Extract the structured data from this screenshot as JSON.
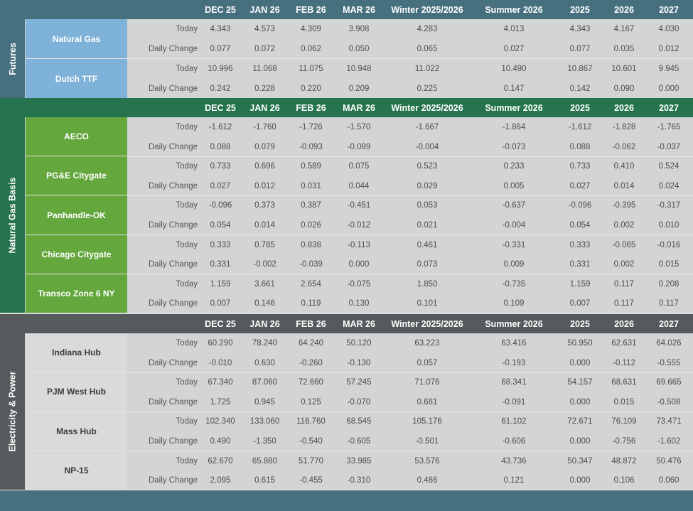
{
  "colors": {
    "futures_header": "#47707f",
    "futures_label": "#7fb2d9",
    "basis_header": "#26744d",
    "basis_label": "#64a73d",
    "power_header": "#565a5c",
    "power_label": "#d8dadc",
    "positive": "#0e5a2c",
    "negative": "#b00018",
    "body": "#d2d4d5"
  },
  "columns": [
    "DEC 25",
    "JAN 26",
    "FEB 26",
    "MAR 26",
    "Winter 2025/2026",
    "Summer 2026",
    "2025",
    "2026",
    "2027"
  ],
  "sections": [
    {
      "title": "Futures",
      "items": [
        {
          "name": "Natural Gas",
          "today_label": "Today",
          "today": [
            "4.343",
            "4.573",
            "4.309",
            "3.908",
            "4.283",
            "4.013",
            "4.343",
            "4.167",
            "4.030"
          ],
          "change_label": "Daily Change",
          "change": [
            "0.077",
            "0.072",
            "0.062",
            "0.050",
            "0.065",
            "0.027",
            "0.077",
            "0.035",
            "0.012"
          ]
        },
        {
          "name": "Dutch TTF",
          "today_label": "Today",
          "today": [
            "10.996",
            "11.068",
            "11.075",
            "10.948",
            "11.022",
            "10.490",
            "10.867",
            "10.601",
            "9.945"
          ],
          "change_label": "Daily Change",
          "change": [
            "0.242",
            "0.228",
            "0.220",
            "0.209",
            "0.225",
            "0.147",
            "0.142",
            "0.090",
            "0.000"
          ]
        }
      ]
    },
    {
      "title": "Natural Gas Basis",
      "items": [
        {
          "name": "AECO",
          "today_label": "Today",
          "today": [
            "-1.612",
            "-1.760",
            "-1.726",
            "-1.570",
            "-1.667",
            "-1.864",
            "-1.612",
            "-1.828",
            "-1.765"
          ],
          "change_label": "Daily Change",
          "change": [
            "0.088",
            "0.079",
            "-0.093",
            "-0.089",
            "-0.004",
            "-0.073",
            "0.088",
            "-0.062",
            "-0.037"
          ]
        },
        {
          "name": "PG&E Citygate",
          "today_label": "Today",
          "today": [
            "0.733",
            "0.696",
            "0.589",
            "0.075",
            "0.523",
            "0.233",
            "0.733",
            "0.410",
            "0.524"
          ],
          "change_label": "Daily Change",
          "change": [
            "0.027",
            "0.012",
            "0.031",
            "0.044",
            "0.029",
            "0.005",
            "0.027",
            "0.014",
            "0.024"
          ]
        },
        {
          "name": "Panhandle-OK",
          "today_label": "Today",
          "today": [
            "-0.096",
            "0.373",
            "0.387",
            "-0.451",
            "0.053",
            "-0.637",
            "-0.096",
            "-0.395",
            "-0.317"
          ],
          "change_label": "Daily Change",
          "change": [
            "0.054",
            "0.014",
            "0.026",
            "-0.012",
            "0.021",
            "-0.004",
            "0.054",
            "0.002",
            "0.010"
          ]
        },
        {
          "name": "Chicago Citygate",
          "today_label": "Today",
          "today": [
            "0.333",
            "0.785",
            "0.838",
            "-0.113",
            "0.461",
            "-0.331",
            "0.333",
            "-0.065",
            "-0.016"
          ],
          "change_label": "Daily Change",
          "change": [
            "0.331",
            "-0.002",
            "-0.039",
            "0.000",
            "0.073",
            "0.009",
            "0.331",
            "0.002",
            "0.015"
          ]
        },
        {
          "name": "Transco Zone 6 NY",
          "today_label": "Today",
          "today": [
            "1.159",
            "3.661",
            "2.654",
            "-0.075",
            "1.850",
            "-0.735",
            "1.159",
            "0.117",
            "0.208"
          ],
          "change_label": "Daily Change",
          "change": [
            "0.007",
            "0.146",
            "0.119",
            "0.130",
            "0.101",
            "0.109",
            "0.007",
            "0.117",
            "0.117"
          ]
        }
      ]
    },
    {
      "title": "Electricity & Power",
      "items": [
        {
          "name": "Indiana Hub",
          "today_label": "Today",
          "today": [
            "60.290",
            "78.240",
            "64.240",
            "50.120",
            "63.223",
            "63.416",
            "50.950",
            "62.631",
            "64.026"
          ],
          "change_label": "Daily Change",
          "change": [
            "-0.010",
            "0.630",
            "-0.260",
            "-0.130",
            "0.057",
            "-0.193",
            "0.000",
            "-0.112",
            "-0.555"
          ]
        },
        {
          "name": "PJM West Hub",
          "today_label": "Today",
          "today": [
            "67.340",
            "87.060",
            "72.660",
            "57.245",
            "71.076",
            "68.341",
            "54.157",
            "68.631",
            "69.665"
          ],
          "change_label": "Daily Change",
          "change": [
            "1.725",
            "0.945",
            "0.125",
            "-0.070",
            "0.681",
            "-0.091",
            "0.000",
            "0.015",
            "-0.508"
          ]
        },
        {
          "name": "Mass Hub",
          "today_label": "Today",
          "today": [
            "102.340",
            "133.060",
            "116.760",
            "68.545",
            "105.176",
            "61.102",
            "72.671",
            "76.109",
            "73.471"
          ],
          "change_label": "Daily Change",
          "change": [
            "0.490",
            "-1.350",
            "-0.540",
            "-0.605",
            "-0.501",
            "-0.606",
            "0.000",
            "-0.756",
            "-1.602"
          ]
        },
        {
          "name": "NP-15",
          "today_label": "Today",
          "today": [
            "62.670",
            "65.880",
            "51.770",
            "33.985",
            "53.576",
            "43.736",
            "50.347",
            "48.872",
            "50.476"
          ],
          "change_label": "Daily Change",
          "change": [
            "2.095",
            "0.615",
            "-0.455",
            "-0.310",
            "0.486",
            "0.121",
            "0.000",
            "0.106",
            "0.060"
          ]
        }
      ]
    }
  ]
}
